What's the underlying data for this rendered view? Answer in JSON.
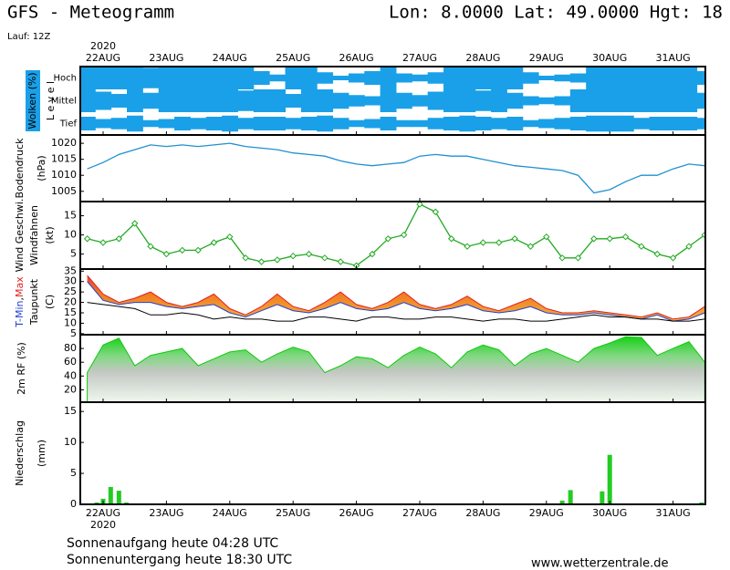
{
  "header": {
    "title": "GFS - Meteogramm",
    "location": "Lon: 8.0000 Lat: 49.0000 Hgt: 18",
    "run": "Lauf: 12Z"
  },
  "time_axis": {
    "year": "2020",
    "xlim": [
      -0.36,
      9.51
    ],
    "xticks": [
      {
        "value": 0,
        "label": "22AUG"
      },
      {
        "value": 1,
        "label": "23AUG"
      },
      {
        "value": 2,
        "label": "24AUG"
      },
      {
        "value": 3,
        "label": "25AUG"
      },
      {
        "value": 4,
        "label": "26AUG"
      },
      {
        "value": 5,
        "label": "27AUG"
      },
      {
        "value": 6,
        "label": "28AUG"
      },
      {
        "value": 7,
        "label": "29AUG"
      },
      {
        "value": 8,
        "label": "30AUG"
      },
      {
        "value": 9,
        "label": "31AUG"
      }
    ],
    "x": [
      -0.25,
      0,
      0.25,
      0.5,
      0.75,
      1,
      1.25,
      1.5,
      1.75,
      2,
      2.25,
      2.5,
      2.75,
      3,
      3.25,
      3.5,
      3.75,
      4,
      4.25,
      4.5,
      4.75,
      5,
      5.25,
      5.5,
      5.75,
      6,
      6.25,
      6.5,
      6.75,
      7,
      7.25,
      7.5,
      7.75,
      8,
      8.25,
      8.5,
      8.75,
      9,
      9.25,
      9.5
    ]
  },
  "chart_data": [
    {
      "type": "clouds",
      "color": "#1aa0e8",
      "ylabel": [
        {
          "text": "Wolken (%)",
          "color": "#ffffff",
          "background": "#1aa0e8"
        },
        {
          "text": "L e v e l"
        }
      ],
      "series": [
        {
          "name": "Hoch",
          "values": [
            100,
            100,
            100,
            100,
            90,
            100,
            100,
            100,
            100,
            100,
            100,
            60,
            30,
            100,
            100,
            50,
            20,
            40,
            60,
            100,
            40,
            30,
            50,
            100,
            100,
            100,
            100,
            100,
            50,
            20,
            30,
            40,
            100,
            100,
            100,
            100,
            100,
            100,
            100,
            60
          ]
        },
        {
          "name": "Mittel",
          "values": [
            100,
            80,
            60,
            100,
            70,
            100,
            100,
            100,
            100,
            100,
            90,
            100,
            100,
            60,
            100,
            100,
            70,
            50,
            40,
            100,
            70,
            50,
            80,
            100,
            100,
            90,
            100,
            70,
            40,
            30,
            40,
            100,
            100,
            100,
            100,
            100,
            100,
            100,
            100,
            70
          ]
        },
        {
          "name": "Tief",
          "values": [
            60,
            40,
            50,
            70,
            30,
            40,
            60,
            50,
            60,
            70,
            50,
            60,
            60,
            50,
            60,
            70,
            50,
            30,
            40,
            60,
            30,
            30,
            50,
            60,
            70,
            60,
            50,
            60,
            30,
            40,
            50,
            60,
            70,
            70,
            70,
            50,
            60,
            60,
            60,
            50
          ]
        }
      ]
    },
    {
      "type": "line",
      "ylabel": [
        {
          "text": "Bodendruck"
        },
        {
          "text": "(hPa)"
        }
      ],
      "ylim": [
        1001.8,
        1022.6
      ],
      "yticks": [
        1005,
        1010,
        1015,
        1020
      ],
      "series": [
        {
          "color": "#2090d0",
          "values": [
            1012,
            1014,
            1016.5,
            1018,
            1019.5,
            1019,
            1019.5,
            1019,
            1019.5,
            1020,
            1019,
            1018.5,
            1018,
            1017,
            1016.5,
            1016,
            1014.5,
            1013.5,
            1013,
            1013.5,
            1014,
            1016,
            1016.5,
            1016,
            1016,
            1015,
            1014,
            1013,
            1012.5,
            1012,
            1011.5,
            1010,
            1004.5,
            1005.5,
            1008,
            1010,
            1010,
            1012,
            1013.5,
            1013
          ]
        }
      ]
    },
    {
      "type": "line",
      "markers": true,
      "ylabel": [
        {
          "text": "Wind Geschwi.",
          "color": "#22aa22"
        },
        {
          "text": "Windfahnen"
        },
        {
          "text": "(kt)"
        }
      ],
      "ylim": [
        1.1,
        18.7
      ],
      "yticks": [
        5,
        10,
        15
      ],
      "series": [
        {
          "color": "#22aa22",
          "values": [
            9,
            8,
            9,
            13,
            7,
            5,
            6,
            6,
            8,
            9.5,
            4,
            3,
            3.5,
            4.5,
            5,
            4,
            3,
            2,
            5,
            9,
            10,
            18,
            16,
            9,
            7,
            8,
            8,
            9,
            7,
            9.5,
            4,
            4,
            9,
            9,
            9.5,
            7,
            5,
            4,
            7,
            10
          ]
        }
      ]
    },
    {
      "type": "band",
      "ylabel": [
        {
          "parts": [
            {
              "text": "T-Min",
              "color": "#2040d0"
            },
            {
              "text": ","
            },
            {
              "text": "Max",
              "color": "#e02020"
            }
          ]
        },
        {
          "text": "Taupunkt"
        },
        {
          "text": "(C)"
        }
      ],
      "ylim": [
        4.5,
        36
      ],
      "yticks": [
        5,
        10,
        15,
        20,
        25,
        30,
        35
      ],
      "series": [
        {
          "color": "#e02020",
          "values": [
            33,
            24,
            20,
            22,
            25,
            20,
            18,
            20,
            24,
            17,
            14,
            18,
            24,
            18,
            16,
            20,
            25,
            19,
            17,
            20,
            25,
            19,
            17,
            19,
            23,
            18,
            16,
            19,
            22,
            17,
            15,
            15,
            16,
            15,
            14,
            13,
            15,
            12,
            13,
            18
          ]
        },
        {
          "color": "#2040d0",
          "values": [
            30,
            21,
            19,
            20,
            20,
            18,
            17,
            18,
            19,
            15,
            13,
            16,
            19,
            16,
            15,
            17,
            20,
            17,
            16,
            17,
            20,
            17,
            16,
            17,
            19,
            16,
            15,
            16,
            18,
            15,
            14,
            14,
            15,
            14,
            13,
            12,
            14,
            11,
            12,
            15
          ]
        },
        {
          "color": "#000000",
          "values": [
            20,
            19,
            18,
            17,
            14,
            14,
            15,
            14,
            12,
            13,
            12,
            12,
            11,
            11,
            13,
            13,
            12,
            11,
            13,
            13,
            12,
            12,
            13,
            13,
            12,
            11,
            12,
            12,
            11,
            11,
            12,
            13,
            14,
            13,
            13,
            12,
            12,
            11,
            11,
            12
          ]
        }
      ]
    },
    {
      "type": "area",
      "ylabel": [
        {
          "text": "2m RF (%)",
          "color": "#22aa22"
        }
      ],
      "ylim": [
        2,
        100
      ],
      "yticks": [
        20,
        40,
        60,
        80
      ],
      "series": [
        {
          "color": "#10c810",
          "values": [
            45,
            85,
            95,
            55,
            70,
            75,
            80,
            55,
            65,
            75,
            78,
            60,
            72,
            82,
            75,
            45,
            55,
            68,
            65,
            52,
            70,
            82,
            72,
            52,
            75,
            85,
            78,
            55,
            72,
            80,
            70,
            60,
            80,
            88,
            97,
            96,
            70,
            80,
            90,
            60
          ]
        }
      ]
    },
    {
      "type": "bar",
      "ylabel": [
        {
          "text": "Niederschlag"
        },
        {
          "text": "(mm)"
        }
      ],
      "ylim": [
        0,
        16.5
      ],
      "yticks": [
        0,
        5,
        10,
        15
      ],
      "color": "#22cc22",
      "x": [
        -0.1,
        0,
        0.12,
        0.25,
        0.37,
        7.25,
        7.38,
        7.88,
        8.0,
        9.45
      ],
      "values": [
        0.3,
        0.9,
        2.8,
        2.2,
        0.3,
        0.6,
        2.3,
        2.1,
        8.0,
        0.3
      ]
    }
  ],
  "footer": {
    "sunrise": "Sonnenaufgang heute 04:28 UTC",
    "sunset": "Sonnenuntergang heute 18:30 UTC",
    "site": "www.wetterzentrale.de"
  }
}
